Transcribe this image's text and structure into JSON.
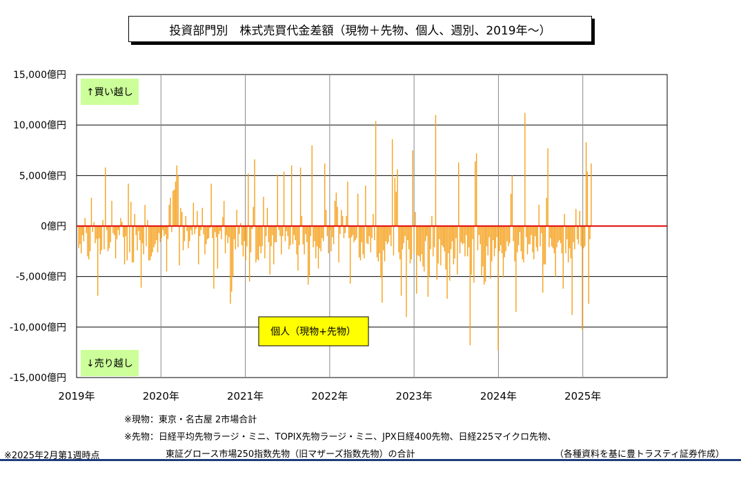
{
  "title": "投資部門別　株式売買代金差額（現物＋先物、個人、週別、2019年～）",
  "chart_data": {
    "type": "bar",
    "title": "投資部門別　株式売買代金差額（現物＋先物、個人、週別、2019年～）",
    "x_start": "2019-01",
    "x_end": "2025-02",
    "frequency": "weekly",
    "xlim": [
      2019,
      2026
    ],
    "ylim": [
      -15000,
      15000
    ],
    "y_ticks": [
      15000,
      10000,
      5000,
      0,
      -5000,
      -10000,
      -15000
    ],
    "y_tick_labels": [
      "15,000億円",
      "10,000億円",
      "5,000億円",
      "0億円",
      "-5,000億円",
      "-10,000億円",
      "-15,000億円"
    ],
    "x_tick_labels": [
      "2019年",
      "2020年",
      "2021年",
      "2022年",
      "2023年",
      "2024年",
      "2025年"
    ],
    "grid": true,
    "bar_color": "#F5A01A",
    "zero_line_color": "#E00000",
    "series": [
      {
        "name": "個人（現物+先物）",
        "values": [
          -2200,
          -1800,
          -2700,
          -900,
          -1500,
          800,
          -700,
          -3000,
          -3300,
          -2500,
          2800,
          -600,
          400,
          -1700,
          -1300,
          -6900,
          -1200,
          -2800,
          -2400,
          600,
          -2300,
          5800,
          -400,
          -2500,
          -2200,
          -1600,
          2500,
          -700,
          -900,
          -3200,
          -1300,
          -400,
          -900,
          800,
          400,
          -1100,
          -3800,
          -1000,
          -3400,
          4200,
          -2600,
          2400,
          -3600,
          -3600,
          1200,
          -900,
          -2400,
          -500,
          -1400,
          -6100,
          -1700,
          -2800,
          2100,
          -2000,
          600,
          -3400,
          -3400,
          -3000,
          -2600,
          -2100,
          -1800,
          -1400,
          -2600,
          -700,
          -1600,
          -1200,
          -400,
          -1000,
          -800,
          -4500,
          -1300,
          2100,
          2800,
          -600,
          3500,
          3600,
          4400,
          6000,
          5000,
          -3900,
          1800,
          1400,
          -2400,
          -1500,
          1000,
          -500,
          -2200,
          -1500,
          -400,
          -900,
          2300,
          -800,
          -300,
          1500,
          -3800,
          -1000,
          -400,
          1800,
          -800,
          -2800,
          -1800,
          -1300,
          -1200,
          -200,
          4200,
          -1200,
          -6200,
          -600,
          -1100,
          -4200,
          -800,
          -500,
          -1300,
          900,
          2500,
          -2700,
          -900,
          -1700,
          -1100,
          -7700,
          -6500,
          -5000,
          -1300,
          -2300,
          1600,
          -2100,
          -800,
          300,
          -1900,
          -3000,
          -1500,
          -3400,
          -2000,
          5200,
          -5500,
          -2600,
          -300,
          1900,
          6600,
          -3600,
          -3300,
          -3400,
          -2000,
          -2700,
          -2000,
          2900,
          -3200,
          -1000,
          1800,
          -1600,
          -4800,
          -2000,
          -900,
          -3800,
          -1600,
          -1600,
          5100,
          -400,
          -1000,
          -2800,
          -1000,
          5400,
          -1500,
          -500,
          -1000,
          -2300,
          -1900,
          6000,
          -1800,
          -900,
          -1400,
          -2800,
          -4400,
          -1900,
          5800,
          1000,
          -1800,
          -2800,
          -800,
          -1600,
          -5800,
          -4900,
          -1000,
          8000,
          -2100,
          -1500,
          -3200,
          -2000,
          -4200,
          -2200,
          -2500,
          -1200,
          -1500,
          6200,
          1600,
          -1000,
          -2700,
          -400,
          -2500,
          -1100,
          -1800,
          2500,
          3300,
          1900,
          -3600,
          -800,
          1600,
          1000,
          -1200,
          -700,
          1000,
          4400,
          -1200,
          -5700,
          -1100,
          -900,
          -1600,
          -1400,
          -1200,
          3200,
          -3100,
          -3400,
          -1600,
          -2800,
          -3200,
          4000,
          -1700,
          -1800,
          -1000,
          -2600,
          -1200,
          1200,
          -1400,
          10400,
          -3100,
          -3500,
          -2700,
          -5100,
          -7600,
          -2400,
          -3500,
          -1500,
          -1800,
          -1600,
          -900,
          -2000,
          8600,
          -2900,
          4800,
          3400,
          5600,
          -2600,
          -3300,
          -6900,
          -2300,
          -1700,
          -1000,
          -9000,
          -1400,
          -2300,
          -3700,
          -3300,
          7500,
          -2700,
          1400,
          -6700,
          -2900,
          -3000,
          -3500,
          -2800,
          -4000,
          -4500,
          -1500,
          -1000,
          -7000,
          -5000,
          -2300,
          1000,
          -3000,
          -2100,
          11000,
          -5300,
          -3700,
          -1300,
          -3900,
          -1900,
          -2100,
          -2500,
          -4300,
          -7200,
          -2700,
          -5400,
          -2300,
          -1500,
          -3800,
          -3200,
          -1200,
          -4800,
          6300,
          -2700,
          -1600,
          -1800,
          -1700,
          -3000,
          -900,
          -3000,
          -2100,
          -11800,
          -4800,
          -1300,
          -5600,
          6400,
          7200,
          -2400,
          -900,
          -1800,
          -4900,
          -4000,
          -5800,
          -5500,
          -2000,
          -2900,
          -1100,
          -5200,
          -3500,
          -1400,
          -3000,
          -2200,
          -1100,
          -12300,
          -2500,
          -1900,
          -2700,
          -5100,
          -3100,
          -2500,
          -1500,
          -2000,
          -1700,
          3200,
          5000,
          -1500,
          -3500,
          -8500,
          -2600,
          -1900,
          -600,
          -2500,
          -3300,
          -3600,
          11200,
          -1100,
          -2800,
          -1800,
          -1800,
          -900,
          -2600,
          -3300,
          -1000,
          -2100,
          -2500,
          2100,
          -2000,
          -700,
          -6600,
          -3800,
          -3800,
          2800,
          7700,
          -2100,
          -1200,
          -2000,
          -2200,
          -2700,
          -5000,
          -2100,
          -1600,
          -1400,
          -1700,
          -2700,
          -6200,
          1200,
          -2700,
          -1300,
          -3600,
          -2200,
          -3200,
          -8800,
          -1600,
          -2300,
          1700,
          -1300,
          -1800,
          1500,
          -2000,
          -10300,
          -2200,
          -2000,
          8300,
          5400,
          -7700,
          -1300,
          6200
        ]
      }
    ],
    "annotations": [
      "↑買い越し",
      "↓売り越し"
    ]
  },
  "labels": {
    "buy_over": "↑買い越し",
    "sell_over": "↓売り越し",
    "series_label": "個人（現物+先物）"
  },
  "notes": {
    "genbutsu": "※現物：東京・名古屋 2市場合計",
    "sakimono_1": "※先物：日経平均先物ラージ・ミニ、TOPIX先物ラージ・ミニ、JPX日経400先物、日経225マイクロ先物、",
    "sakimono_2": "東証グロース市場250指数先物（旧マザーズ指数先物）の合計",
    "as_of": "※2025年2月第1週時点",
    "source": "（各種資料を基に豊トラスティ証券作成）"
  },
  "colors": {
    "label_box_green": "#CCFF99",
    "label_box_yellow": "#FFFF00",
    "grid_line": "#000000",
    "bottom_rule": "#1F3B7A"
  }
}
